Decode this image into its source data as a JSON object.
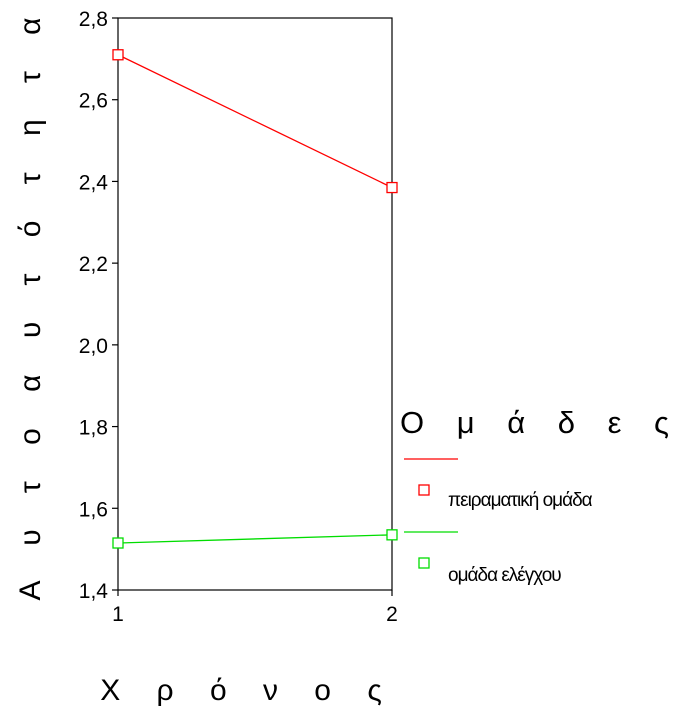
{
  "chart_data": {
    "type": "line",
    "x": [
      1,
      2
    ],
    "x_ticks": [
      "1",
      "2"
    ],
    "y_ticks": [
      "1,4",
      "1,6",
      "1,8",
      "2,0",
      "2,2",
      "2,4",
      "2,6",
      "2,8"
    ],
    "ylim": [
      1.4,
      2.8
    ],
    "xlabel": "Χ ρ ό ν ο ς",
    "ylabel": "Α υ τ ο α υ τ ό τ η τ α",
    "legend_title": "Ο μ ά δ ε ς",
    "legend_position": "right",
    "grid": false,
    "series": [
      {
        "name": "πειραματική ομάδα",
        "values": [
          2.71,
          2.385
        ],
        "color": "#ff0000"
      },
      {
        "name": "ομάδα ελέγχου",
        "values": [
          1.515,
          1.535
        ],
        "color": "#00dd00"
      }
    ]
  }
}
